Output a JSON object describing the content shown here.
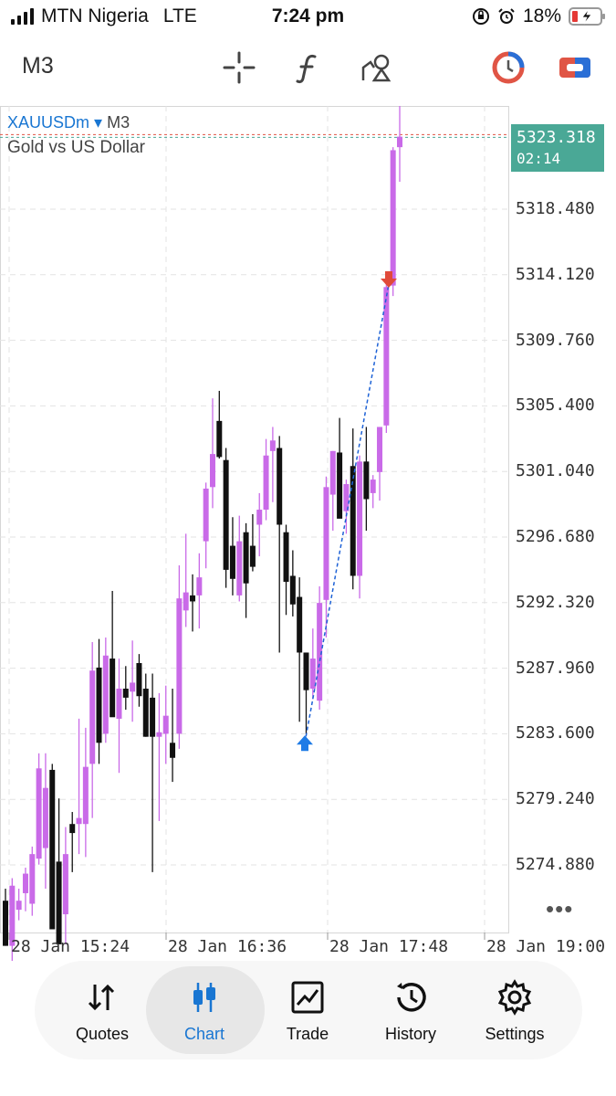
{
  "status_bar": {
    "carrier": "MTN Nigeria",
    "network": "LTE",
    "time": "7:24 pm",
    "battery": "18%",
    "icons": [
      "signal-icon",
      "orientation-lock-icon",
      "alarm-icon",
      "battery-charging-icon"
    ]
  },
  "toolbar": {
    "timeframe": "M3",
    "icons": [
      "crosshair-icon",
      "indicators-icon",
      "objects-icon",
      "timeframe-clock-icon",
      "trade-toggle-icon"
    ]
  },
  "chart": {
    "symbol": "XAUUSDm",
    "dropdown_glyph": "▾",
    "timeframe": "M3",
    "description": "Gold vs US Dollar",
    "current_price": "5323.318",
    "countdown": "02:14",
    "y_labels": [
      "5318.480",
      "5314.120",
      "5309.760",
      "5305.400",
      "5301.040",
      "5296.680",
      "5292.320",
      "5287.960",
      "5283.600",
      "5279.240",
      "5274.880"
    ],
    "x_labels": [
      "28 Jan 15:24",
      "28 Jan 16:36",
      "28 Jan 17:48",
      "28 Jan 19:00"
    ],
    "more_label": "•••",
    "colors": {
      "bull": "#c96ae8",
      "bear": "#111111",
      "price_box": "#4aa896",
      "buy_arrow": "#1e7be6",
      "sell_arrow": "#e04a3a",
      "trade_line": "#1e62d6"
    }
  },
  "chart_data": {
    "type": "candlestick",
    "x_range": [
      "28 Jan 15:24",
      "28 Jan 19:00"
    ],
    "ylim": [
      5271.0,
      5323.3
    ],
    "candles_ohlc": [
      [
        5272.5,
        5273.3,
        5269.5,
        5269.5
      ],
      [
        5269.5,
        5274.0,
        5268.5,
        5273.5
      ],
      [
        5271.9,
        5273.3,
        5271.2,
        5272.5
      ],
      [
        5273.0,
        5274.7,
        5271.8,
        5274.3
      ],
      [
        5272.3,
        5276.1,
        5271.5,
        5275.6
      ],
      [
        5275.3,
        5282.3,
        5274.9,
        5281.3
      ],
      [
        5276.0,
        5282.3,
        5273.3,
        5280.0
      ],
      [
        5281.2,
        5281.6,
        5273.1,
        5270.6
      ],
      [
        5275.1,
        5279.3,
        5271.6,
        5269.6
      ],
      [
        5271.6,
        5277.4,
        5269.6,
        5275.6
      ],
      [
        5277.6,
        5278.4,
        5274.4,
        5277.0
      ],
      [
        5277.6,
        5284.6,
        5275.6,
        5278.0
      ],
      [
        5277.6,
        5284.0,
        5275.4,
        5281.4
      ],
      [
        5281.6,
        5289.7,
        5278.0,
        5287.8
      ],
      [
        5288.0,
        5289.9,
        5281.6,
        5283.0
      ],
      [
        5283.6,
        5290.0,
        5283.0,
        5288.8
      ],
      [
        5288.6,
        5293.1,
        5285.0,
        5284.7
      ],
      [
        5284.6,
        5288.6,
        5281.0,
        5286.6
      ],
      [
        5286.6,
        5288.1,
        5285.2,
        5286.0
      ],
      [
        5286.4,
        5289.8,
        5284.4,
        5287.0
      ],
      [
        5288.3,
        5288.9,
        5285.4,
        5286.1
      ],
      [
        5286.6,
        5287.6,
        5283.4,
        5283.4
      ],
      [
        5286.0,
        5287.6,
        5274.4,
        5283.4
      ],
      [
        5283.4,
        5286.3,
        5277.8,
        5283.7
      ],
      [
        5283.6,
        5286.8,
        5281.6,
        5284.8
      ],
      [
        5283.0,
        5286.6,
        5280.4,
        5282.0
      ],
      [
        5283.6,
        5294.8,
        5282.6,
        5292.6
      ],
      [
        5291.8,
        5296.9,
        5290.7,
        5293.0
      ],
      [
        5292.8,
        5294.2,
        5290.4,
        5292.4
      ],
      [
        5292.8,
        5295.6,
        5290.6,
        5294.0
      ],
      [
        5296.4,
        5300.3,
        5294.6,
        5299.9
      ],
      [
        5300.0,
        5305.9,
        5298.6,
        5302.2
      ],
      [
        5304.4,
        5306.4,
        5301.9,
        5302.0
      ],
      [
        5301.8,
        5302.6,
        5293.3,
        5294.5
      ],
      [
        5296.1,
        5298.0,
        5292.8,
        5293.9
      ],
      [
        5292.8,
        5298.1,
        5292.4,
        5296.4
      ],
      [
        5297.0,
        5297.6,
        5291.3,
        5293.6
      ],
      [
        5296.1,
        5298.2,
        5294.4,
        5294.7
      ],
      [
        5297.5,
        5299.6,
        5295.4,
        5298.5
      ],
      [
        5298.5,
        5303.2,
        5297.8,
        5302.1
      ],
      [
        5302.4,
        5304.0,
        5299.0,
        5303.1
      ],
      [
        5302.6,
        5303.4,
        5289.0,
        5297.5
      ],
      [
        5297.0,
        5297.5,
        5291.5,
        5293.7
      ],
      [
        5294.1,
        5295.8,
        5291.4,
        5292.2
      ],
      [
        5292.7,
        5294.0,
        5284.4,
        5289.0
      ],
      [
        5289.0,
        5289.0,
        5283.6,
        5286.5
      ],
      [
        5286.6,
        5290.6,
        5285.9,
        5288.6
      ],
      [
        5285.8,
        5293.4,
        5285.2,
        5292.3
      ],
      [
        5292.5,
        5300.7,
        5290.0,
        5300.0
      ],
      [
        5299.5,
        5302.4,
        5297.1,
        5302.4
      ],
      [
        5302.3,
        5304.6,
        5298.9,
        5297.9
      ],
      [
        5298.4,
        5300.5,
        5296.9,
        5300.2
      ],
      [
        5301.4,
        5303.9,
        5293.2,
        5294.1
      ],
      [
        5294.1,
        5302.1,
        5292.6,
        5301.7
      ],
      [
        5301.7,
        5304.0,
        5297.1,
        5299.2
      ],
      [
        5299.6,
        5300.8,
        5298.6,
        5300.5
      ],
      [
        5301.0,
        5304.0,
        5299.1,
        5304.0
      ],
      [
        5304.1,
        5313.5,
        5303.6,
        5313.3
      ],
      [
        5313.4,
        5322.6,
        5312.7,
        5322.4
      ],
      [
        5322.6,
        5325.4,
        5320.3,
        5323.3
      ]
    ],
    "trade": {
      "buy_price": 5283.0,
      "sell_price": 5313.5
    },
    "current_price": 5323.318
  },
  "nav": {
    "items": [
      {
        "label": "Quotes",
        "icon": "quotes-arrows-icon"
      },
      {
        "label": "Chart",
        "icon": "chart-candles-icon"
      },
      {
        "label": "Trade",
        "icon": "trade-graph-icon"
      },
      {
        "label": "History",
        "icon": "history-clock-icon"
      },
      {
        "label": "Settings",
        "icon": "settings-gear-icon"
      }
    ],
    "active": "Chart"
  }
}
